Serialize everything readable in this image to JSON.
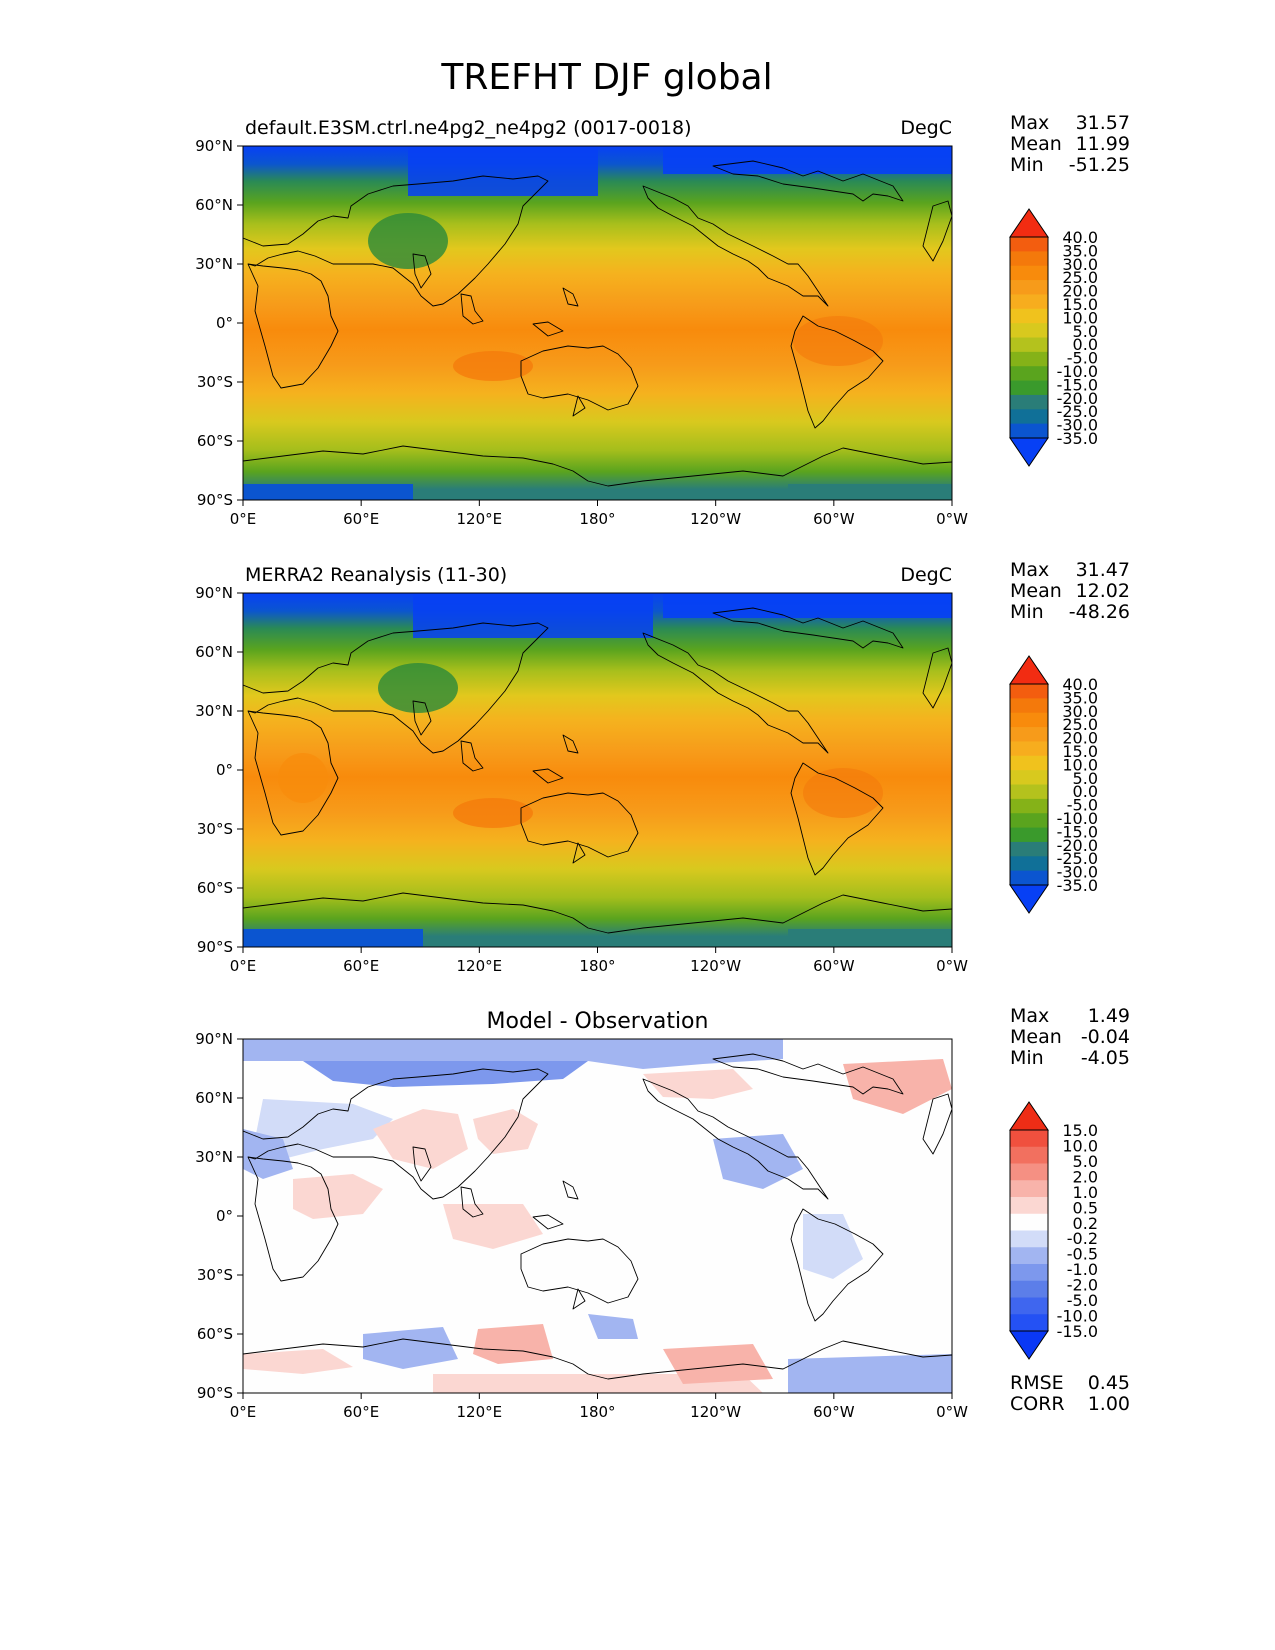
{
  "figure": {
    "title": "TREFHT DJF global"
  },
  "panels": [
    {
      "id": "test",
      "left_title": "default.E3SM.ctrl.ne4pg2_ne4pg2 (0017-0018)",
      "center_title": "",
      "units": "DegC",
      "stats": [
        {
          "label": "Max",
          "value": "31.57"
        },
        {
          "label": "Mean",
          "value": "11.99"
        },
        {
          "label": "Min",
          "value": "-51.25"
        }
      ],
      "colorbar_labels": [
        "40.0",
        "35.0",
        "30.0",
        "25.0",
        "20.0",
        "15.0",
        "10.0",
        "5.0",
        "0.0",
        "-5.0",
        "-10.0",
        "-15.0",
        "-20.0",
        "-25.0",
        "-30.0",
        "-35.0"
      ]
    },
    {
      "id": "reference",
      "left_title": "MERRA2 Reanalysis (11-30)",
      "center_title": "",
      "units": "DegC",
      "stats": [
        {
          "label": "Max",
          "value": "31.47"
        },
        {
          "label": "Mean",
          "value": "12.02"
        },
        {
          "label": "Min",
          "value": "-48.26"
        }
      ],
      "colorbar_labels": [
        "40.0",
        "35.0",
        "30.0",
        "25.0",
        "20.0",
        "15.0",
        "10.0",
        "5.0",
        "0.0",
        "-5.0",
        "-10.0",
        "-15.0",
        "-20.0",
        "-25.0",
        "-30.0",
        "-35.0"
      ]
    },
    {
      "id": "difference",
      "left_title": "",
      "center_title": "Model - Observation",
      "units": "",
      "stats": [
        {
          "label": "Max",
          "value": "1.49"
        },
        {
          "label": "Mean",
          "value": "-0.04"
        },
        {
          "label": "Min",
          "value": "-4.05"
        }
      ],
      "colorbar_labels": [
        "15.0",
        "10.0",
        "5.0",
        "2.0",
        "1.0",
        "0.5",
        "0.2",
        "-0.2",
        "-0.5",
        "-1.0",
        "-2.0",
        "-5.0",
        "-10.0",
        "-15.0"
      ],
      "extra_stats": [
        {
          "label": "RMSE",
          "value": "0.45"
        },
        {
          "label": "CORR",
          "value": "1.00"
        }
      ]
    }
  ],
  "axes": {
    "lat_ticks": [
      "90°N",
      "60°N",
      "30°N",
      "0°",
      "30°S",
      "60°S",
      "90°S"
    ],
    "lon_ticks": [
      "0°E",
      "60°E",
      "120°E",
      "180°",
      "120°W",
      "60°W",
      "0°W"
    ]
  },
  "colors": {
    "abs_scale": [
      "#0740f5",
      "#0b55d0",
      "#107098",
      "#2a7d78",
      "#3a9a2c",
      "#5aa41e",
      "#85b218",
      "#b4c21d",
      "#d8c91e",
      "#f0c21d",
      "#f7ad1e",
      "#f79b1a",
      "#f88b0c",
      "#f4790b",
      "#f35d0f",
      "#f22c12"
    ],
    "diff_scale": [
      "#0a38f5",
      "#2451f4",
      "#3f66ef",
      "#5c7ee9",
      "#7d98ed",
      "#a2b5f1",
      "#d2dcf8",
      "#fefefe",
      "#fbd7d2",
      "#f8b3aa",
      "#f59083",
      "#f2705f",
      "#f0503e",
      "#ee2d16"
    ]
  },
  "chart_data": [
    {
      "type": "heatmap",
      "title": "default.E3SM.ctrl.ne4pg2_ne4pg2 (0017-0018)",
      "units": "DegC",
      "xlim": [
        0,
        360
      ],
      "ylim": [
        -90,
        90
      ],
      "x": [
        0,
        60,
        120,
        180,
        240,
        300,
        360
      ],
      "y": [
        -90,
        -60,
        -30,
        0,
        30,
        60,
        90
      ],
      "levels": [
        -35,
        -30,
        -25,
        -20,
        -15,
        -10,
        -5,
        0,
        5,
        10,
        15,
        20,
        25,
        30,
        35,
        40
      ],
      "stats": {
        "max": 31.57,
        "mean": 11.99,
        "min": -51.25
      }
    },
    {
      "type": "heatmap",
      "title": "MERRA2 Reanalysis (11-30)",
      "units": "DegC",
      "xlim": [
        0,
        360
      ],
      "ylim": [
        -90,
        90
      ],
      "x": [
        0,
        60,
        120,
        180,
        240,
        300,
        360
      ],
      "y": [
        -90,
        -60,
        -30,
        0,
        30,
        60,
        90
      ],
      "levels": [
        -35,
        -30,
        -25,
        -20,
        -15,
        -10,
        -5,
        0,
        5,
        10,
        15,
        20,
        25,
        30,
        35,
        40
      ],
      "stats": {
        "max": 31.47,
        "mean": 12.02,
        "min": -48.26
      }
    },
    {
      "type": "heatmap",
      "title": "Model - Observation",
      "xlim": [
        0,
        360
      ],
      "ylim": [
        -90,
        90
      ],
      "x": [
        0,
        60,
        120,
        180,
        240,
        300,
        360
      ],
      "y": [
        -90,
        -60,
        -30,
        0,
        30,
        60,
        90
      ],
      "levels": [
        -15,
        -10,
        -5,
        -2,
        -1,
        -0.5,
        -0.2,
        0.2,
        0.5,
        1,
        2,
        5,
        10,
        15
      ],
      "stats": {
        "max": 1.49,
        "mean": -0.04,
        "min": -4.05,
        "rmse": 0.45,
        "corr": 1.0
      }
    }
  ]
}
